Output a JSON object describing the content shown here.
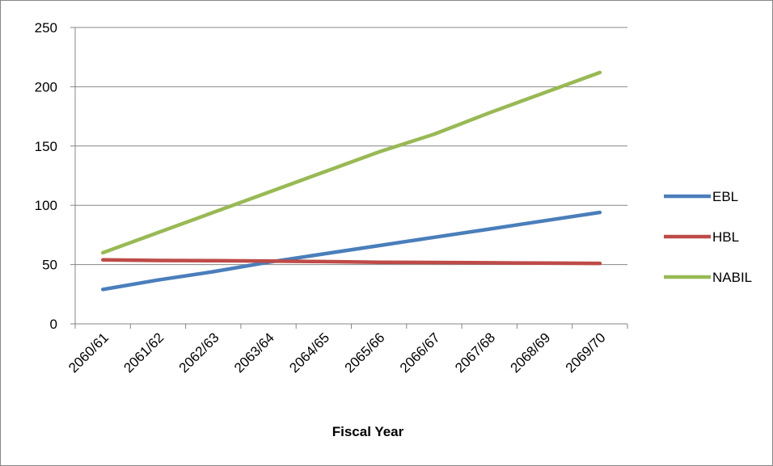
{
  "chart_data": {
    "type": "line",
    "title": "",
    "xlabel": "Fiscal Year",
    "ylabel": "",
    "categories": [
      "2060/61",
      "2061/62",
      "2062/63",
      "2063/64",
      "2064/65",
      "2065/66",
      "2066/67",
      "2067/68",
      "2068/69",
      "2069/70"
    ],
    "ylim": [
      0,
      250
    ],
    "yticks": [
      0,
      50,
      100,
      150,
      200,
      250
    ],
    "grid": "horizontal",
    "legend": "right",
    "series": [
      {
        "name": "EBL",
        "color": "#4a7ebb",
        "values": [
          29,
          37,
          44,
          52,
          59,
          66,
          73,
          80,
          87,
          94
        ]
      },
      {
        "name": "HBL",
        "color": "#be4b48",
        "values": [
          54,
          53.5,
          53.3,
          53,
          52.5,
          52,
          51.8,
          51.5,
          51.2,
          51
        ]
      },
      {
        "name": "NABIL",
        "color": "#98b954",
        "values": [
          60,
          77,
          94,
          111,
          128,
          145,
          160,
          178,
          195,
          212
        ]
      }
    ]
  }
}
